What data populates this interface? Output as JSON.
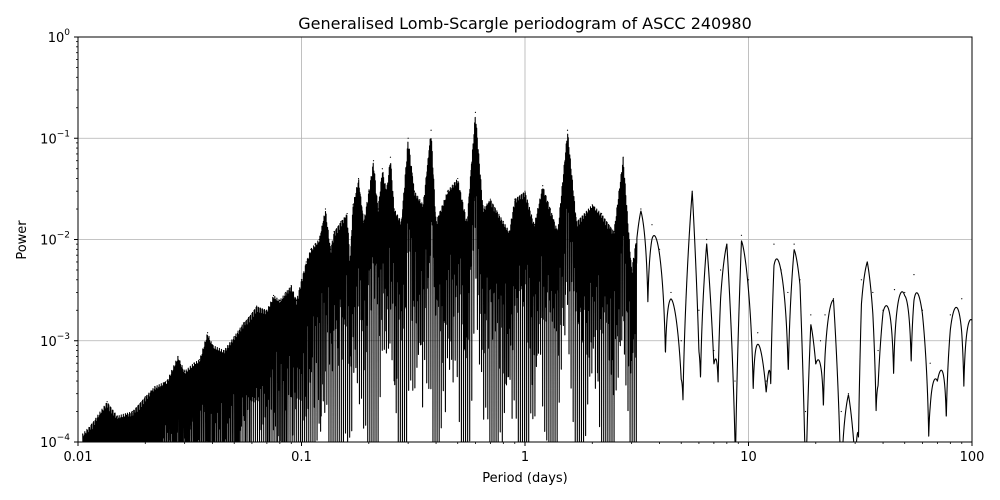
{
  "chart_data": {
    "type": "line",
    "title": "Generalised Lomb-Scargle periodogram of ASCC 240980",
    "xlabel": "Period (days)",
    "ylabel": "Power",
    "xscale": "log",
    "yscale": "log",
    "xlim": [
      0.01,
      100
    ],
    "ylim": [
      0.0001,
      1
    ],
    "grid": true,
    "line_color": "#000000",
    "grid_color": "#b0b0b0",
    "x_ticks": [
      {
        "value": 0.01,
        "label": "0.01"
      },
      {
        "value": 0.1,
        "label": "0.1"
      },
      {
        "value": 1,
        "label": "1"
      },
      {
        "value": 10,
        "label": "10"
      },
      {
        "value": 100,
        "label": "100"
      }
    ],
    "y_ticks": [
      {
        "value": 0.0001,
        "base": "10",
        "exp": "−4"
      },
      {
        "value": 0.001,
        "base": "10",
        "exp": "−3"
      },
      {
        "value": 0.01,
        "base": "10",
        "exp": "−2"
      },
      {
        "value": 0.1,
        "base": "10",
        "exp": "−1"
      },
      {
        "value": 1,
        "base": "10",
        "exp": "0"
      }
    ],
    "series": [
      {
        "values": [
          [
            0.0105,
            0.00012
          ],
          [
            0.0115,
            0.00015
          ],
          [
            0.0135,
            0.00025
          ],
          [
            0.015,
            0.00018
          ],
          [
            0.0175,
            0.0002
          ],
          [
            0.02,
            0.00028
          ],
          [
            0.022,
            0.00035
          ],
          [
            0.025,
            0.0004
          ],
          [
            0.028,
            0.0007
          ],
          [
            0.03,
            0.0005
          ],
          [
            0.033,
            0.0006
          ],
          [
            0.035,
            0.00065
          ],
          [
            0.038,
            0.0012
          ],
          [
            0.04,
            0.0009
          ],
          [
            0.045,
            0.0008
          ],
          [
            0.05,
            0.0011
          ],
          [
            0.055,
            0.0015
          ],
          [
            0.058,
            0.0017
          ],
          [
            0.063,
            0.0022
          ],
          [
            0.07,
            0.002
          ],
          [
            0.075,
            0.0028
          ],
          [
            0.08,
            0.0025
          ],
          [
            0.085,
            0.003
          ],
          [
            0.09,
            0.0035
          ],
          [
            0.095,
            0.0025
          ],
          [
            0.1,
            0.004
          ],
          [
            0.105,
            0.006
          ],
          [
            0.11,
            0.008
          ],
          [
            0.115,
            0.009
          ],
          [
            0.12,
            0.01
          ],
          [
            0.128,
            0.02
          ],
          [
            0.135,
            0.008
          ],
          [
            0.14,
            0.012
          ],
          [
            0.15,
            0.015
          ],
          [
            0.16,
            0.018
          ],
          [
            0.165,
            0.006
          ],
          [
            0.17,
            0.022
          ],
          [
            0.18,
            0.04
          ],
          [
            0.19,
            0.015
          ],
          [
            0.2,
            0.03
          ],
          [
            0.21,
            0.06
          ],
          [
            0.22,
            0.02
          ],
          [
            0.23,
            0.05
          ],
          [
            0.24,
            0.03
          ],
          [
            0.25,
            0.065
          ],
          [
            0.26,
            0.02
          ],
          [
            0.28,
            0.015
          ],
          [
            0.3,
            0.1
          ],
          [
            0.32,
            0.03
          ],
          [
            0.35,
            0.022
          ],
          [
            0.38,
            0.12
          ],
          [
            0.4,
            0.015
          ],
          [
            0.45,
            0.03
          ],
          [
            0.5,
            0.04
          ],
          [
            0.55,
            0.015
          ],
          [
            0.6,
            0.18
          ],
          [
            0.65,
            0.02
          ],
          [
            0.7,
            0.025
          ],
          [
            0.8,
            0.015
          ],
          [
            0.85,
            0.012
          ],
          [
            0.9,
            0.025
          ],
          [
            1.0,
            0.03
          ],
          [
            1.1,
            0.014
          ],
          [
            1.2,
            0.034
          ],
          [
            1.3,
            0.02
          ],
          [
            1.4,
            0.012
          ],
          [
            1.55,
            0.12
          ],
          [
            1.7,
            0.015
          ],
          [
            2.0,
            0.022
          ],
          [
            2.2,
            0.018
          ],
          [
            2.5,
            0.012
          ],
          [
            2.75,
            0.065
          ],
          [
            3.0,
            0.005
          ],
          [
            3.3,
            0.02
          ],
          [
            3.7,
            0.014
          ],
          [
            4.0,
            0.008
          ],
          [
            4.5,
            0.003
          ],
          [
            5.0,
            0.001
          ],
          [
            5.6,
            0.03
          ],
          [
            6.0,
            0.002
          ],
          [
            6.5,
            0.01
          ],
          [
            7.0,
            0.0008
          ],
          [
            7.5,
            0.005
          ],
          [
            8.0,
            0.009
          ],
          [
            8.7,
            0.0004
          ],
          [
            9.3,
            0.011
          ],
          [
            10.0,
            0.004
          ],
          [
            11.0,
            0.0012
          ],
          [
            12.0,
            0.0004
          ],
          [
            13.0,
            0.009
          ],
          [
            14.0,
            0.005
          ],
          [
            15.0,
            0.003
          ],
          [
            16.0,
            0.009
          ],
          [
            17.0,
            0.004
          ],
          [
            18.0,
            0.0002
          ],
          [
            19.0,
            0.0018
          ],
          [
            20.0,
            0.0006
          ],
          [
            21.0,
            0.001
          ],
          [
            22.0,
            0.0018
          ],
          [
            24.0,
            0.0026
          ],
          [
            26.0,
            0.0002
          ],
          [
            28.0,
            0.0003
          ],
          [
            30.0,
            0.0001
          ],
          [
            32.0,
            0.004
          ],
          [
            34.0,
            0.006
          ],
          [
            36.0,
            0.003
          ],
          [
            38.0,
            0.0008
          ],
          [
            40.0,
            0.002
          ],
          [
            45.0,
            0.0032
          ],
          [
            50.0,
            0.003
          ],
          [
            55.0,
            0.0045
          ],
          [
            60.0,
            0.002
          ],
          [
            65.0,
            0.0006
          ],
          [
            70.0,
            0.0004
          ],
          [
            80.0,
            0.0018
          ],
          [
            90.0,
            0.0026
          ],
          [
            100.0,
            0.0016
          ]
        ]
      }
    ]
  }
}
